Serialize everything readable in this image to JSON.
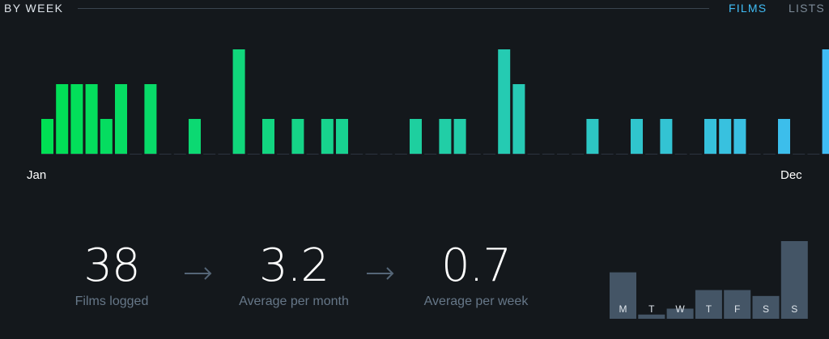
{
  "header": {
    "title": "BY WEEK",
    "tabs": [
      {
        "label": "FILMS",
        "active": true,
        "color": "#40bcf4"
      },
      {
        "label": "LISTS",
        "active": false,
        "color": "#7c8a97"
      }
    ]
  },
  "chart_data": [
    {
      "type": "bar",
      "x_start_label": "Jan",
      "x_end_label": "Dec",
      "values": [
        1,
        2,
        2,
        2,
        1,
        2,
        0,
        2,
        0,
        0,
        1,
        0,
        0,
        3,
        0,
        1,
        0,
        1,
        0,
        1,
        1,
        0,
        0,
        0,
        0,
        1,
        0,
        1,
        1,
        0,
        0,
        3,
        2,
        0,
        0,
        0,
        0,
        1,
        0,
        0,
        1,
        0,
        1,
        0,
        0,
        1,
        1,
        1,
        0,
        0,
        1,
        0,
        0,
        3
      ],
      "ylim": [
        0,
        3
      ],
      "color_start": "#00e054",
      "color_end": "#40bcf4"
    },
    {
      "type": "bar",
      "categories": [
        "M",
        "T",
        "W",
        "T",
        "F",
        "S",
        "S"
      ],
      "values": [
        5.5,
        0.5,
        1.2,
        3.4,
        3.4,
        2.7,
        9.2
      ],
      "color": "#456"
    }
  ],
  "stats": [
    {
      "value": "38",
      "label": "Films logged"
    },
    {
      "value": "3.2",
      "label": "Average per month"
    },
    {
      "value": "0.7",
      "label": "Average per week"
    }
  ],
  "colors": {
    "background": "#14181c",
    "rule": "#3a444e",
    "stat_label": "#667788"
  }
}
